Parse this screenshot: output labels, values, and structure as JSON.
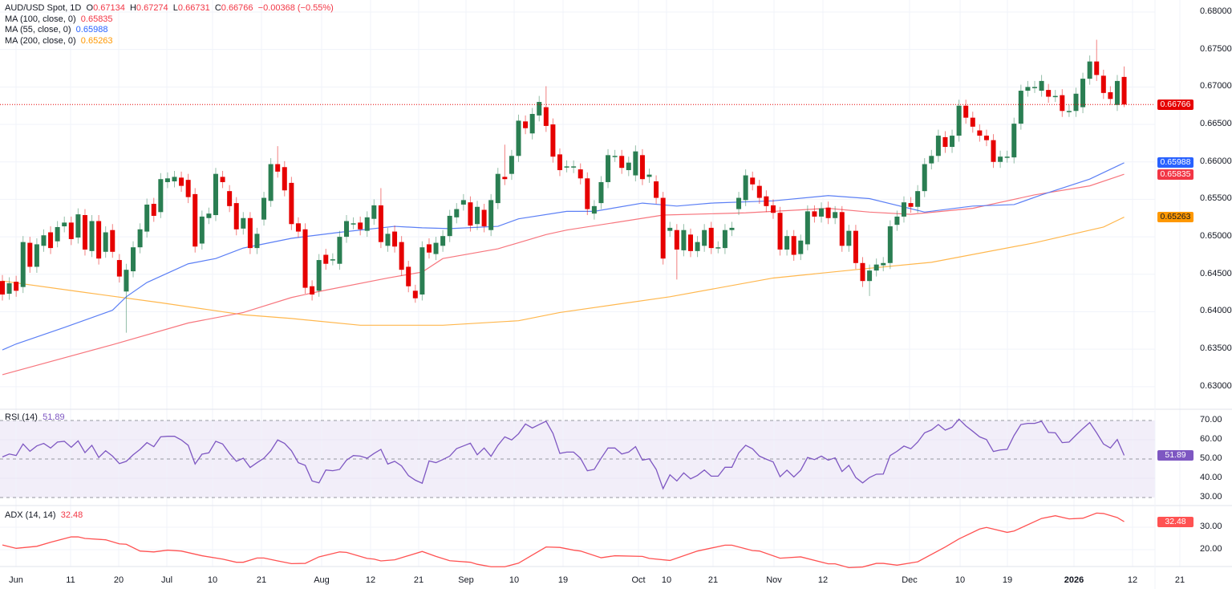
{
  "header": {
    "symbol": "AUD/USD Spot, 1D",
    "o_label": "O",
    "open": "0.67134",
    "h_label": "H",
    "high": "0.67274",
    "l_label": "L",
    "low": "0.66731",
    "c_label": "C",
    "close": "0.66766",
    "change": "−0.00368 (−0.55%)"
  },
  "legend": [
    {
      "label": "MA (100, close, 0)",
      "value": "0.65835",
      "color": "#f23645"
    },
    {
      "label": "MA (55, close, 0)",
      "value": "0.65988",
      "color": "#2962ff"
    },
    {
      "label": "MA (200, close, 0)",
      "value": "0.65263",
      "color": "#ff9800"
    }
  ],
  "rsi": {
    "label": "RSI (14)",
    "value": "51.89",
    "color": "#7e57c2"
  },
  "adx": {
    "label": "ADX (14, 14)",
    "value": "32.48",
    "color": "#f23645"
  },
  "colors": {
    "up": "#2a7e52",
    "down": "#e60000",
    "last_price": "#e60000"
  },
  "chart_data": {
    "type": "candlestick",
    "title": "AUD/USD Spot, 1D",
    "price_axis": {
      "ticks": [
        "0.68000",
        "0.67500",
        "0.67000",
        "0.66500",
        "0.66000",
        "0.65500",
        "0.65000",
        "0.64500",
        "0.64000",
        "0.63500",
        "0.63000"
      ],
      "range": [
        0.63,
        0.68
      ]
    },
    "last_price": "0.66766",
    "ma_badges": {
      "ma55": "0.65988",
      "ma100": "0.65835",
      "ma200": "0.65263"
    },
    "date_ticks": [
      {
        "label": "Jun"
      },
      {
        "label": "11"
      },
      {
        "label": "20"
      },
      {
        "label": "Jul"
      },
      {
        "label": "10"
      },
      {
        "label": "21"
      },
      {
        "label": "Aug"
      },
      {
        "label": "12"
      },
      {
        "label": "21"
      },
      {
        "label": "Sep"
      },
      {
        "label": "10"
      },
      {
        "label": "19"
      },
      {
        "label": "Oct"
      },
      {
        "label": "10"
      },
      {
        "label": "21"
      },
      {
        "label": "Nov"
      },
      {
        "label": "12"
      },
      {
        "label": "Dec"
      },
      {
        "label": "10"
      },
      {
        "label": "19"
      },
      {
        "label": "2026",
        "bold": true
      },
      {
        "label": "12"
      },
      {
        "label": "21"
      }
    ],
    "candles_oc": [
      [
        0.6441,
        0.6423
      ],
      [
        0.6424,
        0.6438
      ],
      [
        0.644,
        0.6428
      ],
      [
        0.6433,
        0.6493
      ],
      [
        0.6492,
        0.646
      ],
      [
        0.646,
        0.649
      ],
      [
        0.6488,
        0.6502
      ],
      [
        0.6506,
        0.6485
      ],
      [
        0.6494,
        0.6513
      ],
      [
        0.6514,
        0.6519
      ],
      [
        0.6519,
        0.6497
      ],
      [
        0.6499,
        0.653
      ],
      [
        0.6529,
        0.6483
      ],
      [
        0.6481,
        0.6521
      ],
      [
        0.6521,
        0.6471
      ],
      [
        0.648,
        0.6506
      ],
      [
        0.6509,
        0.648
      ],
      [
        0.6469,
        0.6447
      ],
      [
        0.6427,
        0.6456
      ],
      [
        0.6454,
        0.6486
      ],
      [
        0.6486,
        0.651
      ],
      [
        0.6507,
        0.6543
      ],
      [
        0.6544,
        0.6528
      ],
      [
        0.6533,
        0.6577
      ],
      [
        0.6573,
        0.6578
      ],
      [
        0.6574,
        0.658
      ],
      [
        0.6579,
        0.6568
      ],
      [
        0.6576,
        0.6553
      ],
      [
        0.6557,
        0.6487
      ],
      [
        0.6491,
        0.6527
      ],
      [
        0.6525,
        0.6531
      ],
      [
        0.6529,
        0.6584
      ],
      [
        0.658,
        0.6573
      ],
      [
        0.6561,
        0.6541
      ],
      [
        0.6545,
        0.651
      ],
      [
        0.6511,
        0.6525
      ],
      [
        0.6525,
        0.6485
      ],
      [
        0.6485,
        0.6504
      ],
      [
        0.6523,
        0.6552
      ],
      [
        0.6548,
        0.6597
      ],
      [
        0.6597,
        0.6587
      ],
      [
        0.6593,
        0.6562
      ],
      [
        0.6572,
        0.6517
      ],
      [
        0.6518,
        0.6507
      ],
      [
        0.651,
        0.6432
      ],
      [
        0.6434,
        0.6423
      ],
      [
        0.6428,
        0.6469
      ],
      [
        0.6476,
        0.6464
      ],
      [
        0.647,
        0.647
      ],
      [
        0.6464,
        0.65
      ],
      [
        0.65,
        0.6521
      ],
      [
        0.6518,
        0.6518
      ],
      [
        0.6519,
        0.651
      ],
      [
        0.6508,
        0.6526
      ],
      [
        0.6524,
        0.6542
      ],
      [
        0.6542,
        0.6493
      ],
      [
        0.6488,
        0.6504
      ],
      [
        0.6507,
        0.6487
      ],
      [
        0.6493,
        0.6456
      ],
      [
        0.646,
        0.6434
      ],
      [
        0.6428,
        0.6418
      ],
      [
        0.6423,
        0.6486
      ],
      [
        0.649,
        0.6479
      ],
      [
        0.6477,
        0.6492
      ],
      [
        0.6488,
        0.6501
      ],
      [
        0.6501,
        0.6528
      ],
      [
        0.6526,
        0.6537
      ],
      [
        0.6543,
        0.6549
      ],
      [
        0.6546,
        0.6515
      ],
      [
        0.6517,
        0.654
      ],
      [
        0.6536,
        0.6514
      ],
      [
        0.6509,
        0.6549
      ],
      [
        0.6545,
        0.6584
      ],
      [
        0.658,
        0.6577
      ],
      [
        0.6584,
        0.6608
      ],
      [
        0.6608,
        0.6655
      ],
      [
        0.6654,
        0.6645
      ],
      [
        0.6638,
        0.6664
      ],
      [
        0.6662,
        0.668
      ],
      [
        0.6673,
        0.6648
      ],
      [
        0.665,
        0.6607
      ],
      [
        0.661,
        0.6589
      ],
      [
        0.6594,
        0.6594
      ],
      [
        0.6593,
        0.6594
      ],
      [
        0.659,
        0.6578
      ],
      [
        0.6578,
        0.6537
      ],
      [
        0.6531,
        0.6541
      ],
      [
        0.6545,
        0.6573
      ],
      [
        0.6573,
        0.6609
      ],
      [
        0.6608,
        0.6608
      ],
      [
        0.6608,
        0.6592
      ],
      [
        0.6589,
        0.6599
      ],
      [
        0.6582,
        0.6614
      ],
      [
        0.6609,
        0.6577
      ],
      [
        0.658,
        0.6583
      ],
      [
        0.6574,
        0.6552
      ],
      [
        0.6552,
        0.6471
      ],
      [
        0.6508,
        0.6512
      ],
      [
        0.6509,
        0.6483
      ],
      [
        0.6482,
        0.6509
      ],
      [
        0.6503,
        0.6481
      ],
      [
        0.6481,
        0.6493
      ],
      [
        0.6488,
        0.6509
      ],
      [
        0.6512,
        0.6485
      ],
      [
        0.6486,
        0.6486
      ],
      [
        0.6485,
        0.6509
      ],
      [
        0.6509,
        0.6512
      ],
      [
        0.6537,
        0.6552
      ],
      [
        0.6549,
        0.6582
      ],
      [
        0.6579,
        0.657
      ],
      [
        0.6568,
        0.6552
      ],
      [
        0.6554,
        0.6541
      ],
      [
        0.6542,
        0.6532
      ],
      [
        0.6532,
        0.6483
      ],
      [
        0.6483,
        0.6501
      ],
      [
        0.6501,
        0.6476
      ],
      [
        0.6477,
        0.6495
      ],
      [
        0.649,
        0.6534
      ],
      [
        0.6534,
        0.6527
      ],
      [
        0.6527,
        0.6538
      ],
      [
        0.6539,
        0.6525
      ],
      [
        0.6525,
        0.6533
      ],
      [
        0.6533,
        0.6488
      ],
      [
        0.6488,
        0.6508
      ],
      [
        0.6508,
        0.6465
      ],
      [
        0.6465,
        0.6441
      ],
      [
        0.6441,
        0.6455
      ],
      [
        0.6455,
        0.6463
      ],
      [
        0.6462,
        0.6465
      ],
      [
        0.6465,
        0.6514
      ],
      [
        0.6516,
        0.6527
      ],
      [
        0.6527,
        0.6546
      ],
      [
        0.6545,
        0.654
      ],
      [
        0.654,
        0.6561
      ],
      [
        0.6561,
        0.6597
      ],
      [
        0.6598,
        0.6608
      ],
      [
        0.6608,
        0.6635
      ],
      [
        0.6633,
        0.662
      ],
      [
        0.662,
        0.6635
      ],
      [
        0.6635,
        0.6675
      ],
      [
        0.6675,
        0.6659
      ],
      [
        0.6659,
        0.6647
      ],
      [
        0.6642,
        0.6635
      ],
      [
        0.6635,
        0.6629
      ],
      [
        0.6629,
        0.66
      ],
      [
        0.66,
        0.6607
      ],
      [
        0.6607,
        0.6607
      ],
      [
        0.6606,
        0.6651
      ],
      [
        0.6651,
        0.6695
      ],
      [
        0.6695,
        0.67
      ],
      [
        0.67,
        0.67
      ],
      [
        0.6695,
        0.6708
      ],
      [
        0.6696,
        0.6687
      ],
      [
        0.6688,
        0.6688
      ],
      [
        0.6689,
        0.6668
      ],
      [
        0.6668,
        0.6668
      ],
      [
        0.6668,
        0.6691
      ],
      [
        0.6673,
        0.6711
      ],
      [
        0.6711,
        0.6734
      ],
      [
        0.6734,
        0.6716
      ],
      [
        0.6715,
        0.6692
      ],
      [
        0.6693,
        0.6684
      ],
      [
        0.6676,
        0.6708
      ],
      [
        0.67134,
        0.66766
      ]
    ],
    "wick_extremes": {
      "18": {
        "low": 0.6372
      },
      "40": {
        "high": 0.6621
      },
      "55": {
        "high": 0.6565
      },
      "60": {
        "low": 0.6412
      },
      "73": {
        "high": 0.6623
      },
      "79": {
        "high": 0.6701
      },
      "98": {
        "low": 0.6443
      },
      "126": {
        "low": 0.6421
      },
      "159": {
        "high": 0.6763
      },
      "163": {
        "high": 0.67274,
        "low": 0.66731
      }
    },
    "ma55": [
      [
        0,
        0.6349
      ],
      [
        2,
        0.6357
      ],
      [
        9,
        0.6379
      ],
      [
        16,
        0.6402
      ],
      [
        18,
        0.642
      ],
      [
        21,
        0.6439
      ],
      [
        27,
        0.6464
      ],
      [
        31,
        0.6471
      ],
      [
        35,
        0.6485
      ],
      [
        42,
        0.6498
      ],
      [
        49,
        0.6506
      ],
      [
        57,
        0.6514
      ],
      [
        61,
        0.6512
      ],
      [
        65,
        0.6511
      ],
      [
        72,
        0.6514
      ],
      [
        75,
        0.6524
      ],
      [
        82,
        0.6534
      ],
      [
        86,
        0.6534
      ],
      [
        93,
        0.6545
      ],
      [
        98,
        0.6541
      ],
      [
        103,
        0.6545
      ],
      [
        112,
        0.6548
      ],
      [
        120,
        0.6555
      ],
      [
        126,
        0.6551
      ],
      [
        134,
        0.6533
      ],
      [
        141,
        0.6541
      ],
      [
        147,
        0.6543
      ],
      [
        151,
        0.6556
      ],
      [
        158,
        0.6577
      ],
      [
        163,
        0.65988
      ]
    ],
    "ma100": [
      [
        0,
        0.6316
      ],
      [
        16,
        0.6356
      ],
      [
        27,
        0.6385
      ],
      [
        35,
        0.6399
      ],
      [
        42,
        0.6419
      ],
      [
        46,
        0.6427
      ],
      [
        56,
        0.6445
      ],
      [
        61,
        0.6453
      ],
      [
        64,
        0.6471
      ],
      [
        72,
        0.6484
      ],
      [
        79,
        0.6503
      ],
      [
        82,
        0.6509
      ],
      [
        96,
        0.6529
      ],
      [
        108,
        0.6532
      ],
      [
        120,
        0.6538
      ],
      [
        126,
        0.6533
      ],
      [
        132,
        0.653
      ],
      [
        141,
        0.6538
      ],
      [
        150,
        0.6556
      ],
      [
        158,
        0.6568
      ],
      [
        163,
        0.65835
      ]
    ],
    "ma200": [
      [
        0,
        0.6441
      ],
      [
        11,
        0.6427
      ],
      [
        23,
        0.6412
      ],
      [
        35,
        0.6396
      ],
      [
        42,
        0.6391
      ],
      [
        52,
        0.6382
      ],
      [
        64,
        0.6382
      ],
      [
        75,
        0.6388
      ],
      [
        81,
        0.6399
      ],
      [
        97,
        0.642
      ],
      [
        112,
        0.6445
      ],
      [
        126,
        0.6458
      ],
      [
        135,
        0.6466
      ],
      [
        150,
        0.6492
      ],
      [
        160,
        0.6513
      ],
      [
        163,
        0.65263
      ]
    ],
    "rsi_axis": [
      "70.00",
      "60.00",
      "50.00",
      "40.00",
      "30.00"
    ],
    "rsi_levels": [
      70,
      50,
      30
    ],
    "rsi_values": [
      51.1,
      52.6,
      51.8,
      57.8,
      54.0,
      56.8,
      58.1,
      55.7,
      58.8,
      59.2,
      56.1,
      59.4,
      53.3,
      57.1,
      50.8,
      54.3,
      51.5,
      47.6,
      48.8,
      52.2,
      55.0,
      58.5,
      56.4,
      61.5,
      61.8,
      61.8,
      59.9,
      57.1,
      47.4,
      52.5,
      53.2,
      59.2,
      57.8,
      52.9,
      48.8,
      50.4,
      45.6,
      48.1,
      50.4,
      54.3,
      59.9,
      58.1,
      54.3,
      48.1,
      46.7,
      38.6,
      37.6,
      44.3,
      43.9,
      44.6,
      49.4,
      51.8,
      51.5,
      50.4,
      52.9,
      55.0,
      47.4,
      48.8,
      46.4,
      41.4,
      39.0,
      37.4,
      49.0,
      48.1,
      49.7,
      51.5,
      55.4,
      56.8,
      58.2,
      52.2,
      55.7,
      51.4,
      57.1,
      61.5,
      59.9,
      63.1,
      68.2,
      66.1,
      67.9,
      69.6,
      63.3,
      52.9,
      53.6,
      53.6,
      50.4,
      43.9,
      44.6,
      50.4,
      55.7,
      55.7,
      52.6,
      53.6,
      56.4,
      49.4,
      50.1,
      44.6,
      34.6,
      41.8,
      38.6,
      42.8,
      39.7,
      41.5,
      44.3,
      41.1,
      41.1,
      45.7,
      45.7,
      53.2,
      57.1,
      55.3,
      51.5,
      49.9,
      48.5,
      40.8,
      44.2,
      40.7,
      44.2,
      50.8,
      49.7,
      51.5,
      49.4,
      50.6,
      43.5,
      46.7,
      40.4,
      37.6,
      40.4,
      42.1,
      42.2,
      51.8,
      54.0,
      56.7,
      55.3,
      58.8,
      63.6,
      65.1,
      67.9,
      65.0,
      66.5,
      70.7,
      67.2,
      64.4,
      61.5,
      60.1,
      53.9,
      54.7,
      55.0,
      62.2,
      67.9,
      68.5,
      68.5,
      69.6,
      63.8,
      63.6,
      58.5,
      58.8,
      62.4,
      65.8,
      68.9,
      63.6,
      57.8,
      55.7,
      60.1,
      51.89
    ],
    "adx_axis": [
      "30.00",
      "20.00"
    ],
    "adx_points": [
      [
        0,
        22.1
      ],
      [
        2,
        20.6
      ],
      [
        5,
        21.5
      ],
      [
        7,
        23.3
      ],
      [
        10,
        25.7
      ],
      [
        11,
        25.7
      ],
      [
        12,
        25.0
      ],
      [
        15,
        24.4
      ],
      [
        17,
        22.6
      ],
      [
        18,
        22.4
      ],
      [
        20,
        19.4
      ],
      [
        22,
        19.0
      ],
      [
        24,
        19.8
      ],
      [
        26,
        19.4
      ],
      [
        29,
        17.3
      ],
      [
        32,
        15.8
      ],
      [
        34,
        14.4
      ],
      [
        35,
        14.4
      ],
      [
        37,
        16.3
      ],
      [
        38,
        16.3
      ],
      [
        40,
        15.0
      ],
      [
        42,
        13.8
      ],
      [
        44,
        13.9
      ],
      [
        46,
        16.8
      ],
      [
        49,
        19.0
      ],
      [
        50,
        18.8
      ],
      [
        53,
        16.1
      ],
      [
        54,
        15.8
      ],
      [
        55,
        15.0
      ],
      [
        57,
        15.5
      ],
      [
        61,
        19.2
      ],
      [
        63,
        17.0
      ],
      [
        65,
        15.1
      ],
      [
        68,
        14.4
      ],
      [
        69,
        13.5
      ],
      [
        71,
        12.4
      ],
      [
        73,
        12.4
      ],
      [
        75,
        14.0
      ],
      [
        77,
        17.6
      ],
      [
        79,
        21.2
      ],
      [
        81,
        21.0
      ],
      [
        83,
        19.8
      ],
      [
        84,
        19.4
      ],
      [
        87,
        16.4
      ],
      [
        89,
        17.3
      ],
      [
        93,
        17.0
      ],
      [
        94,
        16.1
      ],
      [
        97,
        15.2
      ],
      [
        101,
        19.4
      ],
      [
        105,
        22.0
      ],
      [
        106,
        22.0
      ],
      [
        109,
        19.6
      ],
      [
        110,
        19.4
      ],
      [
        113,
        16.2
      ],
      [
        116,
        16.8
      ],
      [
        120,
        13.7
      ],
      [
        121,
        13.7
      ],
      [
        123,
        12.0
      ],
      [
        125,
        12.3
      ],
      [
        127,
        13.9
      ],
      [
        128,
        13.9
      ],
      [
        130,
        13.1
      ],
      [
        133,
        14.6
      ],
      [
        137,
        21.2
      ],
      [
        139,
        24.8
      ],
      [
        142,
        29.2
      ],
      [
        143,
        29.9
      ],
      [
        146,
        27.7
      ],
      [
        147,
        28.3
      ],
      [
        151,
        33.9
      ],
      [
        153,
        35.1
      ],
      [
        155,
        33.7
      ],
      [
        157,
        34.0
      ],
      [
        159,
        36.3
      ],
      [
        160,
        36.1
      ],
      [
        162,
        34.3
      ],
      [
        163,
        32.48
      ]
    ]
  }
}
